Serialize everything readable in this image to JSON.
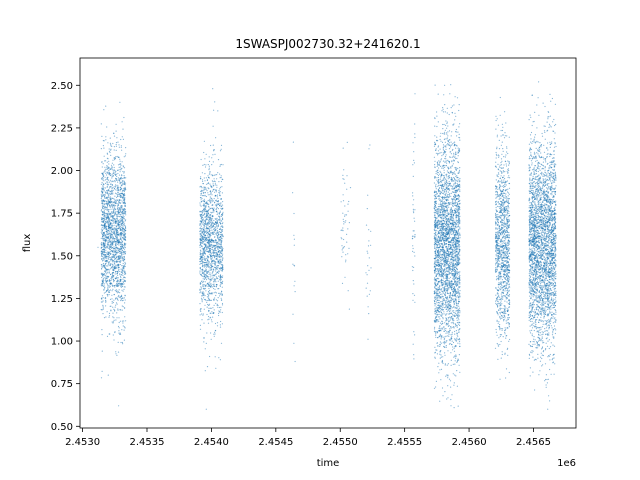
{
  "chart_data": {
    "type": "scatter",
    "title": "1SWASPJ002730.32+241620.1",
    "xlabel": "time",
    "ylabel": "flux",
    "x_offset_label": "1e6",
    "xlim": [
      2452980,
      2456830
    ],
    "ylim": [
      0.49,
      2.66
    ],
    "x_ticks": [
      2453000,
      2453500,
      2454000,
      2454500,
      2455000,
      2455500,
      2456000,
      2456500
    ],
    "x_tick_labels": [
      "2.4530",
      "2.4535",
      "2.4540",
      "2.4545",
      "2.4550",
      "2.4555",
      "2.4560",
      "2.4565"
    ],
    "y_ticks": [
      0.5,
      0.75,
      1.0,
      1.25,
      1.5,
      1.75,
      2.0,
      2.25,
      2.5
    ],
    "y_tick_labels": [
      "0.50",
      "0.75",
      "1.00",
      "1.25",
      "1.50",
      "1.75",
      "2.00",
      "2.25",
      "2.50"
    ],
    "grid": false,
    "marker_color": "#1f77b4",
    "series": [
      {
        "values": [
          [
            2453120,
            1.55
          ],
          [
            2453180,
            1.62
          ],
          [
            2453220,
            1.48
          ],
          [
            2453260,
            1.7
          ],
          [
            2453300,
            1.58
          ],
          [
            2453150,
            2.2
          ],
          [
            2453250,
            1.05
          ],
          [
            2453290,
            2.4
          ],
          [
            2453200,
            0.8
          ],
          [
            2453280,
            0.62
          ],
          [
            2453930,
            1.6
          ],
          [
            2453980,
            1.52
          ],
          [
            2454030,
            1.65
          ],
          [
            2454080,
            1.45
          ],
          [
            2454050,
            2.35
          ],
          [
            2453970,
            0.85
          ],
          [
            2454010,
            2.48
          ],
          [
            2453960,
            0.6
          ],
          [
            2454630,
            1.87
          ],
          [
            2454640,
            1.62
          ],
          [
            2454650,
            0.88
          ],
          [
            2455020,
            1.75
          ],
          [
            2455050,
            1.58
          ],
          [
            2455080,
            1.9
          ],
          [
            2455200,
            1.4
          ],
          [
            2455230,
            2.15
          ],
          [
            2455560,
            1.6
          ],
          [
            2455580,
            2.45
          ],
          [
            2455570,
            0.92
          ],
          [
            2455790,
            1.55
          ],
          [
            2455840,
            1.65
          ],
          [
            2455880,
            1.45
          ],
          [
            2455810,
            2.5
          ],
          [
            2455860,
            0.62
          ],
          [
            2456230,
            1.62
          ],
          [
            2456270,
            1.52
          ],
          [
            2456300,
            2.1
          ],
          [
            2456250,
            0.9
          ],
          [
            2456510,
            1.6
          ],
          [
            2456560,
            1.5
          ],
          [
            2456600,
            1.72
          ],
          [
            2456640,
            1.4
          ],
          [
            2456540,
            2.52
          ],
          [
            2456610,
            0.6
          ]
        ]
      }
    ],
    "clusters": [
      {
        "x_center": 2453240,
        "x_spread": 95,
        "y_mean": 1.62,
        "y_sd": 0.24,
        "n": 2000
      },
      {
        "x_center": 2454000,
        "x_spread": 90,
        "y_mean": 1.57,
        "y_sd": 0.22,
        "n": 1500
      },
      {
        "x_center": 2454640,
        "x_spread": 10,
        "y_mean": 1.45,
        "y_sd": 0.3,
        "n": 12
      },
      {
        "x_center": 2455040,
        "x_spread": 35,
        "y_mean": 1.65,
        "y_sd": 0.2,
        "n": 50
      },
      {
        "x_center": 2455220,
        "x_spread": 20,
        "y_mean": 1.5,
        "y_sd": 0.3,
        "n": 25
      },
      {
        "x_center": 2455570,
        "x_spread": 10,
        "y_mean": 1.6,
        "y_sd": 0.35,
        "n": 45
      },
      {
        "x_center": 2455830,
        "x_spread": 100,
        "y_mean": 1.55,
        "y_sd": 0.32,
        "n": 3000
      },
      {
        "x_center": 2456260,
        "x_spread": 55,
        "y_mean": 1.57,
        "y_sd": 0.27,
        "n": 1200
      },
      {
        "x_center": 2456570,
        "x_spread": 105,
        "y_mean": 1.57,
        "y_sd": 0.3,
        "n": 3000
      }
    ]
  }
}
